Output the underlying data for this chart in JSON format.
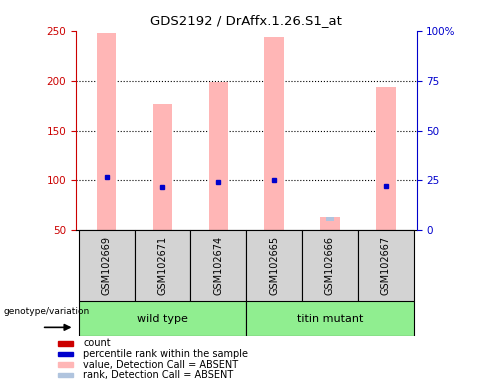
{
  "title": "GDS2192 / DrAffx.1.26.S1_at",
  "samples": [
    "GSM102669",
    "GSM102671",
    "GSM102674",
    "GSM102665",
    "GSM102666",
    "GSM102667"
  ],
  "pink_bar_values": [
    248,
    177,
    199,
    244,
    0,
    194
  ],
  "blue_dot_values": [
    103,
    93,
    98,
    100,
    0,
    94
  ],
  "pink_rank_bar_values": [
    0,
    0,
    0,
    0,
    63,
    0
  ],
  "blue_rank_dot_values": [
    0,
    0,
    0,
    0,
    60,
    0
  ],
  "bar_bottom": 50,
  "ylim_left": [
    50,
    250
  ],
  "ylim_right": [
    0,
    100
  ],
  "yticks_left": [
    50,
    100,
    150,
    200,
    250
  ],
  "yticks_right": [
    0,
    25,
    50,
    75,
    100
  ],
  "ytick_labels_right": [
    "0",
    "25",
    "50",
    "75",
    "100%"
  ],
  "left_axis_color": "#cc0000",
  "right_axis_color": "#0000cc",
  "grid_dotted_at": [
    100,
    150,
    200
  ],
  "legend_items": [
    {
      "label": "count",
      "color": "#cc0000"
    },
    {
      "label": "percentile rank within the sample",
      "color": "#0000cc"
    },
    {
      "label": "value, Detection Call = ABSENT",
      "color": "#ffb6b6"
    },
    {
      "label": "rank, Detection Call = ABSENT",
      "color": "#b0c4de"
    }
  ],
  "genotype_label": "genotype/variation",
  "group_wt_label": "wild type",
  "group_tm_label": "titin mutant",
  "group_color": "#90ee90",
  "gray_bg": "#d3d3d3",
  "bar_width": 0.35
}
